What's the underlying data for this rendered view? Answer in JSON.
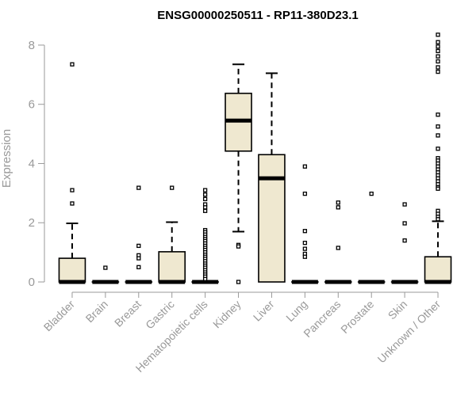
{
  "chart_data": {
    "type": "box",
    "title": "ENSG00000250511 - RP11-380D23.1",
    "xlabel": "",
    "ylabel": "Expression",
    "ylim": [
      0,
      8.4
    ],
    "yticks": [
      0,
      2,
      4,
      6,
      8
    ],
    "box_fill": "#efe8d0",
    "axis_color": "#999999",
    "categories": [
      "Bladder",
      "Brain",
      "Breast",
      "Gastric",
      "Hematopoietic cells",
      "Kidney",
      "Liver",
      "Lung",
      "Pancreas",
      "Prostate",
      "Skin",
      "Unknown / Other"
    ],
    "boxes": [
      {
        "q1": 0,
        "median": 0,
        "q3": 0.8,
        "whisker_low": 0,
        "whisker_high": 1.98,
        "outliers": [
          7.35,
          3.1,
          2.65
        ]
      },
      {
        "q1": 0,
        "median": 0,
        "q3": 0,
        "whisker_low": 0,
        "whisker_high": 0,
        "outliers": [
          0.48
        ]
      },
      {
        "q1": 0,
        "median": 0,
        "q3": 0,
        "whisker_low": 0,
        "whisker_high": 0,
        "outliers": [
          3.18,
          1.22,
          0.9,
          0.8,
          0.5
        ]
      },
      {
        "q1": 0,
        "median": 0,
        "q3": 1.02,
        "whisker_low": 0,
        "whisker_high": 2.02,
        "outliers": [
          3.18
        ]
      },
      {
        "q1": 0,
        "median": 0,
        "q3": 0,
        "whisker_low": 0,
        "whisker_high": 0,
        "outliers": [
          3.1,
          2.95,
          2.8,
          2.62,
          2.52,
          2.4,
          1.75,
          1.68,
          1.6,
          1.52,
          1.45,
          1.38,
          1.3,
          1.22,
          1.15,
          1.08,
          1.0,
          0.92,
          0.85,
          0.78,
          0.7,
          0.62,
          0.55,
          0.48,
          0.4,
          0.32,
          0.25,
          0.18,
          0.1
        ]
      },
      {
        "q1": 4.42,
        "median": 5.45,
        "q3": 6.37,
        "whisker_low": 1.7,
        "whisker_high": 7.35,
        "outliers": [
          1.25,
          1.2,
          0
        ]
      },
      {
        "q1": 0,
        "median": 3.5,
        "q3": 4.3,
        "whisker_low": 0,
        "whisker_high": 7.05,
        "outliers": []
      },
      {
        "q1": 0,
        "median": 0,
        "q3": 0,
        "whisker_low": 0,
        "whisker_high": 0,
        "outliers": [
          3.9,
          2.98,
          1.72,
          1.32,
          1.12,
          0.95,
          0.85
        ]
      },
      {
        "q1": 0,
        "median": 0,
        "q3": 0,
        "whisker_low": 0,
        "whisker_high": 0,
        "outliers": [
          2.68,
          2.52,
          1.15
        ]
      },
      {
        "q1": 0,
        "median": 0,
        "q3": 0,
        "whisker_low": 0,
        "whisker_high": 0,
        "outliers": [
          2.98
        ]
      },
      {
        "q1": 0,
        "median": 0,
        "q3": 0,
        "whisker_low": 0,
        "whisker_high": 0,
        "outliers": [
          2.62,
          1.98,
          1.4
        ]
      },
      {
        "q1": 0,
        "median": 0,
        "q3": 0.85,
        "whisker_low": 0,
        "whisker_high": 2.05,
        "outliers": [
          8.35,
          8.1,
          7.95,
          7.8,
          7.62,
          7.45,
          7.25,
          7.1,
          5.65,
          5.25,
          4.95,
          4.5,
          4.18,
          4.1,
          4.0,
          3.9,
          3.8,
          3.7,
          3.6,
          3.5,
          3.4,
          3.3,
          3.2,
          3.15,
          2.4,
          2.3,
          2.2,
          2.12
        ]
      }
    ]
  }
}
